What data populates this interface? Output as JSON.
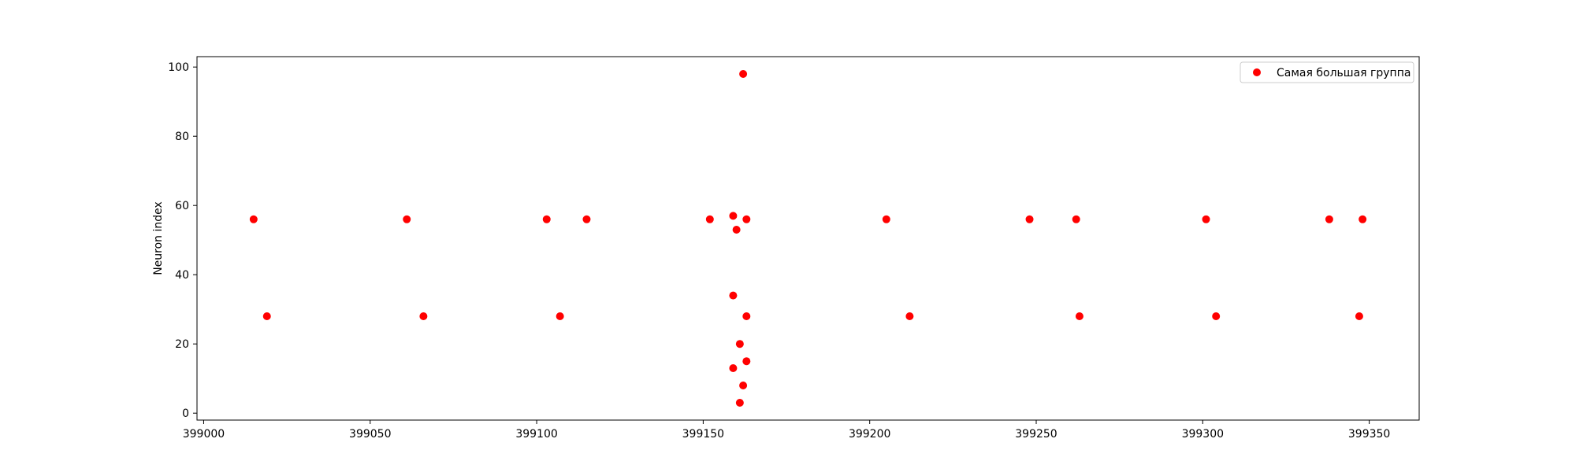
{
  "chart_data": {
    "type": "scatter",
    "title": "",
    "xlabel": "",
    "ylabel": "Neuron index",
    "xlim": [
      398998,
      399365
    ],
    "ylim": [
      -2,
      103
    ],
    "x_ticks": [
      399000,
      399050,
      399100,
      399150,
      399200,
      399250,
      399300,
      399350
    ],
    "y_ticks": [
      0,
      20,
      40,
      60,
      80,
      100
    ],
    "grid": false,
    "legend": {
      "placement": "top-right",
      "entries": [
        "Самая большая группа"
      ]
    },
    "series": [
      {
        "name": "Самая большая группа",
        "color": "#ff0000",
        "points": [
          {
            "x": 399015,
            "y": 56
          },
          {
            "x": 399019,
            "y": 28
          },
          {
            "x": 399061,
            "y": 56
          },
          {
            "x": 399066,
            "y": 28
          },
          {
            "x": 399103,
            "y": 56
          },
          {
            "x": 399107,
            "y": 28
          },
          {
            "x": 399115,
            "y": 56
          },
          {
            "x": 399152,
            "y": 56
          },
          {
            "x": 399159,
            "y": 57
          },
          {
            "x": 399160,
            "y": 53
          },
          {
            "x": 399159,
            "y": 34
          },
          {
            "x": 399162,
            "y": 98
          },
          {
            "x": 399163,
            "y": 56
          },
          {
            "x": 399163,
            "y": 28
          },
          {
            "x": 399161,
            "y": 20
          },
          {
            "x": 399163,
            "y": 15
          },
          {
            "x": 399159,
            "y": 13
          },
          {
            "x": 399162,
            "y": 8
          },
          {
            "x": 399161,
            "y": 3
          },
          {
            "x": 399205,
            "y": 56
          },
          {
            "x": 399212,
            "y": 28
          },
          {
            "x": 399248,
            "y": 56
          },
          {
            "x": 399262,
            "y": 56
          },
          {
            "x": 399263,
            "y": 28
          },
          {
            "x": 399301,
            "y": 56
          },
          {
            "x": 399304,
            "y": 28
          },
          {
            "x": 399338,
            "y": 56
          },
          {
            "x": 399347,
            "y": 28
          },
          {
            "x": 399348,
            "y": 56
          }
        ]
      }
    ]
  }
}
